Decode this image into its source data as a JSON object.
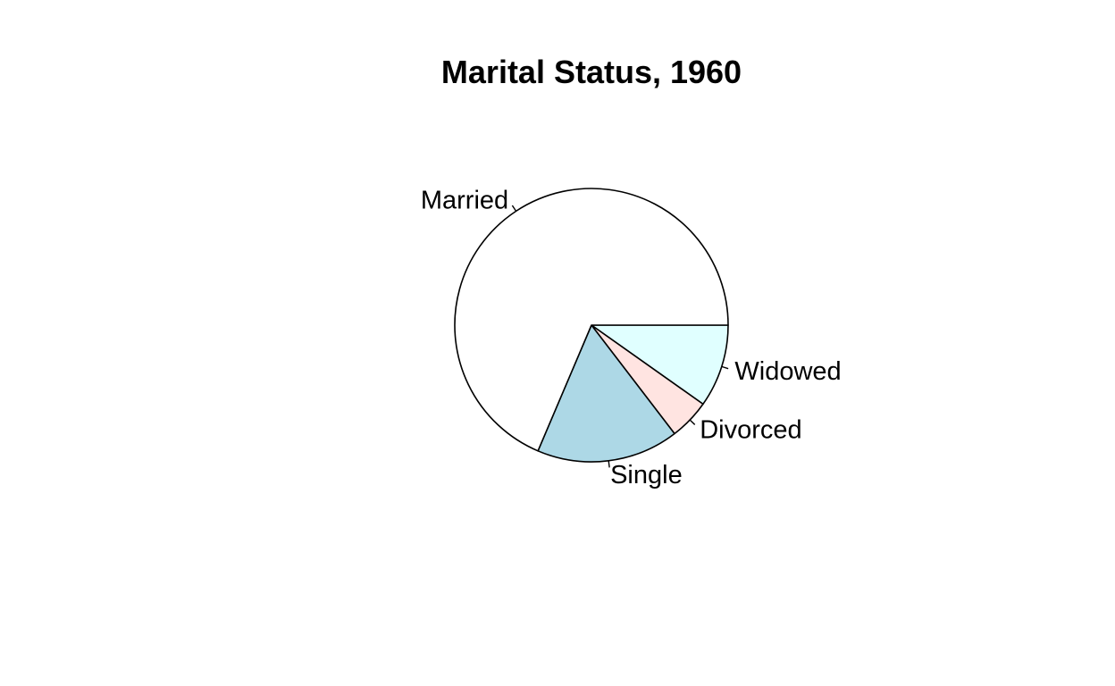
{
  "chart_data": {
    "type": "pie",
    "title": "Marital Status, 1960",
    "labels": [
      "Widowed",
      "Divorced",
      "Single",
      "Married"
    ],
    "values": [
      9.8,
      4.8,
      16.8,
      68.6
    ],
    "colors": [
      "#E0FFFF",
      "#FFE4E1",
      "#ADD8E6",
      "#FFFFFF"
    ],
    "start_angle_deg": 0,
    "direction": "clockwise",
    "legend": "none",
    "outline_color": "#000000"
  }
}
